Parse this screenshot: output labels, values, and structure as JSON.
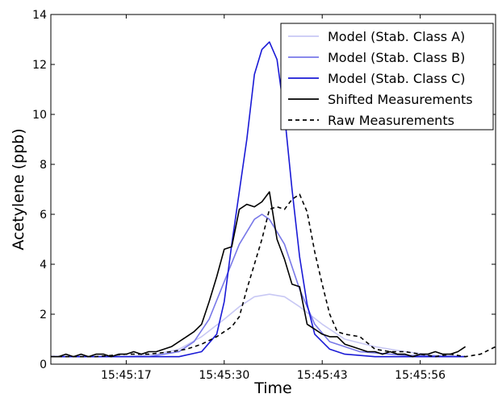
{
  "chart_data": {
    "type": "line",
    "title": "",
    "xlabel": "Time",
    "ylabel": "Acetylene (ppb)",
    "xlim": [
      "15:45:07",
      "15:46:06"
    ],
    "ylim": [
      0,
      14
    ],
    "x_ticks": [
      "15:45:17",
      "15:45:30",
      "15:45:43",
      "15:45:56"
    ],
    "y_ticks": [
      "0",
      "2",
      "4",
      "6",
      "8",
      "10",
      "12",
      "14"
    ],
    "grid": false,
    "legend_position": "top-right",
    "series": [
      {
        "name": "Model (Stab. Class A)",
        "color": "#c8c8f4",
        "style": "solid",
        "x": [
          "15:45:07",
          "15:45:17",
          "15:45:21",
          "15:45:24",
          "15:45:27",
          "15:45:30",
          "15:45:32",
          "15:45:34",
          "15:45:36",
          "15:45:38",
          "15:45:40",
          "15:45:43",
          "15:45:46",
          "15:45:50",
          "15:45:54",
          "15:45:58",
          "15:46:02"
        ],
        "values": [
          0.3,
          0.3,
          0.4,
          0.6,
          1.1,
          1.8,
          2.3,
          2.7,
          2.8,
          2.7,
          2.3,
          1.6,
          1.0,
          0.7,
          0.5,
          0.35,
          0.3
        ]
      },
      {
        "name": "Model (Stab. Class B)",
        "color": "#7878e8",
        "style": "solid",
        "x": [
          "15:45:07",
          "15:45:20",
          "15:45:24",
          "15:45:26",
          "15:45:28",
          "15:45:30",
          "15:45:32",
          "15:45:34",
          "15:45:35",
          "15:45:36",
          "15:45:38",
          "15:45:40",
          "15:45:42",
          "15:45:44",
          "15:45:48",
          "15:45:54",
          "15:46:02"
        ],
        "values": [
          0.3,
          0.3,
          0.5,
          0.9,
          1.8,
          3.3,
          4.8,
          5.8,
          6.0,
          5.8,
          4.8,
          3.0,
          1.6,
          0.9,
          0.5,
          0.35,
          0.3
        ]
      },
      {
        "name": "Model (Stab. Class C)",
        "color": "#1a1ad6",
        "style": "solid",
        "x": [
          "15:45:07",
          "15:45:24",
          "15:45:27",
          "15:45:29",
          "15:45:30",
          "15:45:31",
          "15:45:33",
          "15:45:34",
          "15:45:35",
          "15:45:36",
          "15:45:37",
          "15:45:38",
          "15:45:39",
          "15:45:40",
          "15:45:41",
          "15:45:42",
          "15:45:44",
          "15:45:46",
          "15:45:50",
          "15:46:02"
        ],
        "values": [
          0.3,
          0.3,
          0.5,
          1.2,
          2.5,
          4.8,
          9.0,
          11.6,
          12.6,
          12.9,
          12.2,
          10.0,
          7.0,
          4.3,
          2.4,
          1.2,
          0.6,
          0.4,
          0.3,
          0.3
        ]
      },
      {
        "name": "Shifted Measurements",
        "color": "#000000",
        "style": "solid",
        "x": [
          "15:45:07",
          "15:45:08",
          "15:45:09",
          "15:45:10",
          "15:45:11",
          "15:45:12",
          "15:45:13",
          "15:45:14",
          "15:45:15",
          "15:45:16",
          "15:45:17",
          "15:45:18",
          "15:45:19",
          "15:45:20",
          "15:45:21",
          "15:45:22",
          "15:45:23",
          "15:45:24",
          "15:45:25",
          "15:45:26",
          "15:45:27",
          "15:45:28",
          "15:45:29",
          "15:45:30",
          "15:45:31",
          "15:45:32",
          "15:45:33",
          "15:45:34",
          "15:45:35",
          "15:45:36",
          "15:45:37",
          "15:45:38",
          "15:45:39",
          "15:45:40",
          "15:45:41",
          "15:45:42",
          "15:45:43",
          "15:45:44",
          "15:45:45",
          "15:45:46",
          "15:45:47",
          "15:45:48",
          "15:45:49",
          "15:45:50",
          "15:45:51",
          "15:45:52",
          "15:45:53",
          "15:45:54",
          "15:45:55",
          "15:45:56",
          "15:45:57",
          "15:45:58",
          "15:45:59",
          "15:46:00",
          "15:46:01",
          "15:46:02"
        ],
        "values": [
          0.3,
          0.3,
          0.4,
          0.3,
          0.4,
          0.3,
          0.4,
          0.4,
          0.3,
          0.4,
          0.4,
          0.5,
          0.4,
          0.5,
          0.5,
          0.6,
          0.7,
          0.9,
          1.1,
          1.3,
          1.6,
          2.5,
          3.5,
          4.6,
          4.7,
          6.2,
          6.4,
          6.3,
          6.5,
          6.9,
          5.0,
          4.2,
          3.2,
          3.1,
          1.6,
          1.4,
          1.2,
          1.1,
          1.1,
          0.8,
          0.7,
          0.6,
          0.5,
          0.5,
          0.4,
          0.5,
          0.4,
          0.4,
          0.3,
          0.4,
          0.4,
          0.5,
          0.4,
          0.4,
          0.5,
          0.7
        ]
      },
      {
        "name": "Raw Measurements",
        "color": "#000000",
        "style": "dashed",
        "x": [
          "15:45:07",
          "15:45:13",
          "15:45:17",
          "15:45:20",
          "15:45:23",
          "15:45:25",
          "15:45:27",
          "15:45:29",
          "15:45:30",
          "15:45:31",
          "15:45:32",
          "15:45:33",
          "15:45:34",
          "15:45:35",
          "15:45:36",
          "15:45:37",
          "15:45:38",
          "15:45:39",
          "15:45:40",
          "15:45:41",
          "15:45:42",
          "15:45:43",
          "15:45:44",
          "15:45:45",
          "15:45:46",
          "15:45:48",
          "15:45:50",
          "15:45:52",
          "15:45:54",
          "15:45:56",
          "15:45:58",
          "15:46:00",
          "15:46:02",
          "15:46:04",
          "15:46:06"
        ],
        "values": [
          0.3,
          0.3,
          0.4,
          0.4,
          0.5,
          0.6,
          0.8,
          1.1,
          1.3,
          1.5,
          1.9,
          3.0,
          4.0,
          5.0,
          6.2,
          6.3,
          6.2,
          6.6,
          6.8,
          6.1,
          4.5,
          3.2,
          2.0,
          1.3,
          1.2,
          1.1,
          0.6,
          0.5,
          0.5,
          0.4,
          0.3,
          0.4,
          0.3,
          0.4,
          0.7
        ]
      }
    ]
  }
}
